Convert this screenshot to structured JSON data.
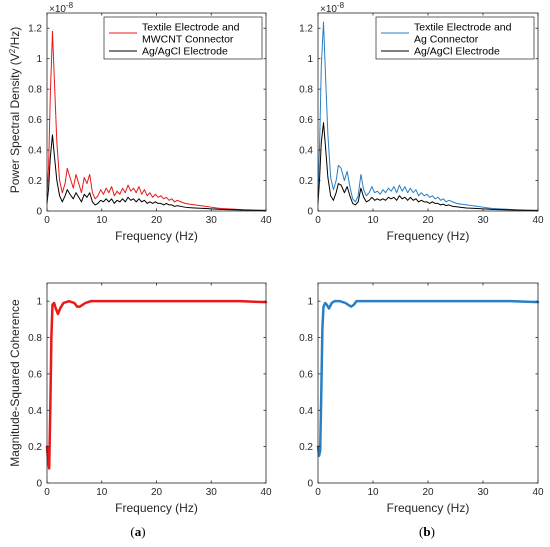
{
  "chart_data": [
    {
      "id": "a-psd",
      "type": "line",
      "panel": "(a)",
      "xlabel": "Frequency (Hz)",
      "ylabel_main": "Power Spectral Density (V",
      "ylabel_sup": "2",
      "ylabel_tail": "/Hz)",
      "exponent_base": "×10",
      "exponent": "-8",
      "xlim": [
        0,
        40
      ],
      "ylim": [
        0,
        1.3
      ],
      "xticks": [
        0,
        10,
        20,
        30,
        40
      ],
      "yticks": [
        0,
        0.2,
        0.4,
        0.6,
        0.8,
        1,
        1.2
      ],
      "legend_position": "top-right",
      "series": [
        {
          "name": "Textile Electrode and MWCNT Connector",
          "name_lines": [
            "Textile Electrode and",
            "MWCNT Connector"
          ],
          "color": "#e8191b",
          "width": 1.0,
          "x": [
            0,
            0.3,
            0.6,
            1.0,
            1.3,
            1.8,
            2.3,
            2.8,
            3.3,
            3.7,
            4.2,
            4.8,
            5.3,
            5.8,
            6.3,
            6.8,
            7.3,
            7.8,
            8.3,
            8.8,
            9.3,
            9.8,
            10.3,
            10.8,
            11.3,
            11.8,
            12.3,
            12.8,
            13.3,
            13.8,
            14.3,
            14.8,
            15.3,
            15.8,
            16.3,
            16.8,
            17.3,
            17.8,
            18.3,
            18.8,
            19.3,
            19.8,
            20.3,
            20.8,
            21.3,
            21.8,
            22.3,
            22.8,
            23.3,
            23.8,
            24.5,
            25.2,
            26,
            27,
            28,
            29,
            30,
            31,
            32,
            33,
            34,
            35,
            36,
            37,
            38,
            39,
            40
          ],
          "y": [
            0.1,
            0.3,
            0.75,
            1.18,
            0.9,
            0.45,
            0.2,
            0.12,
            0.18,
            0.28,
            0.22,
            0.15,
            0.24,
            0.18,
            0.12,
            0.22,
            0.18,
            0.24,
            0.12,
            0.08,
            0.1,
            0.14,
            0.11,
            0.15,
            0.12,
            0.16,
            0.1,
            0.13,
            0.11,
            0.15,
            0.12,
            0.17,
            0.13,
            0.15,
            0.12,
            0.16,
            0.11,
            0.14,
            0.1,
            0.12,
            0.09,
            0.11,
            0.09,
            0.1,
            0.08,
            0.09,
            0.07,
            0.08,
            0.06,
            0.07,
            0.06,
            0.05,
            0.045,
            0.04,
            0.035,
            0.03,
            0.025,
            0.02,
            0.016,
            0.014,
            0.012,
            0.01,
            0.008,
            0.007,
            0.006,
            0.005,
            0.004
          ]
        },
        {
          "name": "Ag/AgCl Electrode",
          "name_lines": [
            "Ag/AgCl Electrode"
          ],
          "color": "#000000",
          "width": 1.0,
          "x": [
            0,
            0.3,
            0.6,
            1.0,
            1.3,
            1.8,
            2.3,
            2.8,
            3.3,
            3.7,
            4.2,
            4.8,
            5.3,
            5.8,
            6.3,
            6.8,
            7.3,
            7.8,
            8.3,
            8.8,
            9.3,
            9.8,
            10.3,
            10.8,
            11.3,
            11.8,
            12.3,
            12.8,
            13.3,
            13.8,
            14.3,
            14.8,
            15.3,
            15.8,
            16.3,
            16.8,
            17.3,
            17.8,
            18.3,
            18.8,
            19.3,
            19.8,
            20.3,
            20.8,
            21.3,
            21.8,
            22.3,
            22.8,
            23.3,
            23.8,
            24.5,
            25.2,
            26,
            27,
            28,
            29,
            30,
            31,
            32,
            33,
            34,
            35,
            36,
            37,
            38,
            39,
            40
          ],
          "y": [
            0.05,
            0.15,
            0.35,
            0.5,
            0.38,
            0.2,
            0.1,
            0.06,
            0.1,
            0.14,
            0.11,
            0.08,
            0.12,
            0.09,
            0.06,
            0.11,
            0.09,
            0.12,
            0.06,
            0.04,
            0.05,
            0.07,
            0.06,
            0.08,
            0.06,
            0.08,
            0.05,
            0.07,
            0.06,
            0.08,
            0.06,
            0.09,
            0.07,
            0.08,
            0.06,
            0.08,
            0.06,
            0.07,
            0.05,
            0.06,
            0.05,
            0.06,
            0.05,
            0.05,
            0.04,
            0.05,
            0.04,
            0.04,
            0.03,
            0.035,
            0.03,
            0.025,
            0.022,
            0.02,
            0.018,
            0.016,
            0.014,
            0.012,
            0.01,
            0.009,
            0.008,
            0.007,
            0.006,
            0.005,
            0.004,
            0.004,
            0.003
          ]
        }
      ]
    },
    {
      "id": "b-psd",
      "type": "line",
      "panel": "(b)",
      "xlabel": "Frequency (Hz)",
      "exponent_base": "×10",
      "exponent": "-8",
      "xlim": [
        0,
        40
      ],
      "ylim": [
        0,
        1.3
      ],
      "xticks": [
        0,
        10,
        20,
        30,
        40
      ],
      "yticks": [
        0,
        0.2,
        0.4,
        0.6,
        0.8,
        1,
        1.2
      ],
      "legend_position": "top-right",
      "series": [
        {
          "name": "Textile Electrode and Ag Connector",
          "name_lines": [
            "Textile Electrode and",
            "Ag Connector"
          ],
          "color": "#2a7fc4",
          "width": 1.0,
          "x": [
            0,
            0.3,
            0.6,
            1.0,
            1.3,
            1.8,
            2.3,
            2.8,
            3.3,
            3.7,
            4.2,
            4.8,
            5.3,
            5.8,
            6.3,
            6.8,
            7.3,
            7.8,
            8.3,
            8.8,
            9.3,
            9.8,
            10.3,
            10.8,
            11.3,
            11.8,
            12.3,
            12.8,
            13.3,
            13.8,
            14.3,
            14.8,
            15.3,
            15.8,
            16.3,
            16.8,
            17.3,
            17.8,
            18.3,
            18.8,
            19.3,
            19.8,
            20.3,
            20.8,
            21.3,
            21.8,
            22.3,
            22.8,
            23.3,
            23.8,
            24.5,
            25.2,
            26,
            27,
            28,
            29,
            30,
            31,
            32,
            33,
            34,
            35,
            36,
            37,
            38,
            39,
            40
          ],
          "y": [
            0.1,
            0.45,
            0.95,
            1.24,
            0.95,
            0.5,
            0.22,
            0.14,
            0.2,
            0.3,
            0.28,
            0.2,
            0.26,
            0.16,
            0.08,
            0.06,
            0.1,
            0.24,
            0.14,
            0.1,
            0.12,
            0.16,
            0.12,
            0.13,
            0.11,
            0.14,
            0.12,
            0.15,
            0.13,
            0.16,
            0.12,
            0.17,
            0.13,
            0.16,
            0.12,
            0.15,
            0.12,
            0.14,
            0.1,
            0.12,
            0.1,
            0.11,
            0.09,
            0.1,
            0.08,
            0.09,
            0.07,
            0.08,
            0.06,
            0.07,
            0.06,
            0.05,
            0.045,
            0.04,
            0.035,
            0.03,
            0.025,
            0.02,
            0.016,
            0.014,
            0.012,
            0.01,
            0.008,
            0.007,
            0.006,
            0.005,
            0.004
          ]
        },
        {
          "name": "Ag/AgCl Electrode",
          "name_lines": [
            "Ag/AgCl Electrode"
          ],
          "color": "#000000",
          "width": 1.0,
          "x": [
            0,
            0.3,
            0.6,
            1.0,
            1.3,
            1.8,
            2.3,
            2.8,
            3.3,
            3.7,
            4.2,
            4.8,
            5.3,
            5.8,
            6.3,
            6.8,
            7.3,
            7.8,
            8.3,
            8.8,
            9.3,
            9.8,
            10.3,
            10.8,
            11.3,
            11.8,
            12.3,
            12.8,
            13.3,
            13.8,
            14.3,
            14.8,
            15.3,
            15.8,
            16.3,
            16.8,
            17.3,
            17.8,
            18.3,
            18.8,
            19.3,
            19.8,
            20.3,
            20.8,
            21.3,
            21.8,
            22.3,
            22.8,
            23.3,
            23.8,
            24.5,
            25.2,
            26,
            27,
            28,
            29,
            30,
            31,
            32,
            33,
            34,
            35,
            36,
            37,
            38,
            39,
            40
          ],
          "y": [
            0.05,
            0.22,
            0.45,
            0.58,
            0.45,
            0.22,
            0.1,
            0.07,
            0.12,
            0.18,
            0.17,
            0.12,
            0.16,
            0.1,
            0.05,
            0.04,
            0.06,
            0.15,
            0.09,
            0.06,
            0.07,
            0.09,
            0.07,
            0.08,
            0.07,
            0.08,
            0.07,
            0.09,
            0.08,
            0.09,
            0.07,
            0.1,
            0.08,
            0.09,
            0.07,
            0.09,
            0.07,
            0.08,
            0.06,
            0.07,
            0.06,
            0.06,
            0.05,
            0.06,
            0.05,
            0.05,
            0.04,
            0.045,
            0.035,
            0.04,
            0.03,
            0.028,
            0.024,
            0.02,
            0.018,
            0.016,
            0.014,
            0.012,
            0.01,
            0.009,
            0.008,
            0.007,
            0.006,
            0.005,
            0.004,
            0.004,
            0.003
          ]
        }
      ]
    },
    {
      "id": "a-coh",
      "type": "line",
      "xlabel": "Frequency (Hz)",
      "ylabel": "Magnitude-Squared Coherence",
      "xlim": [
        0,
        40
      ],
      "ylim": [
        0,
        1.1
      ],
      "xticks": [
        0,
        10,
        20,
        30,
        40
      ],
      "yticks": [
        0,
        0.2,
        0.4,
        0.6,
        0.8,
        1
      ],
      "series": [
        {
          "color": "#e8191b",
          "width": 2.5,
          "x": [
            0,
            0.2,
            0.4,
            0.6,
            0.8,
            1.0,
            1.3,
            1.6,
            2.0,
            2.4,
            3.0,
            4.0,
            5.0,
            5.5,
            6.0,
            6.5,
            7.0,
            8.0,
            10,
            15,
            20,
            25,
            30,
            35,
            40
          ],
          "y": [
            0.2,
            0.12,
            0.08,
            0.4,
            0.8,
            0.98,
            0.99,
            0.96,
            0.93,
            0.96,
            0.99,
            1.0,
            0.99,
            0.97,
            0.97,
            0.98,
            0.99,
            1.0,
            1.0,
            1.0,
            1.0,
            1.0,
            1.0,
            1.0,
            0.995
          ]
        }
      ]
    },
    {
      "id": "b-coh",
      "type": "line",
      "xlabel": "Frequency (Hz)",
      "xlim": [
        0,
        40
      ],
      "ylim": [
        0,
        1.1
      ],
      "xticks": [
        0,
        10,
        20,
        30,
        40
      ],
      "yticks": [
        0,
        0.2,
        0.4,
        0.6,
        0.8,
        1
      ],
      "series": [
        {
          "color": "#2a7fc4",
          "width": 2.5,
          "x": [
            0,
            0.2,
            0.4,
            0.6,
            0.8,
            1.0,
            1.3,
            1.6,
            2.0,
            2.5,
            3.0,
            4.0,
            5.0,
            6.0,
            6.5,
            7.0,
            8.0,
            10,
            15,
            20,
            25,
            30,
            35,
            40
          ],
          "y": [
            0.2,
            0.15,
            0.18,
            0.5,
            0.85,
            0.97,
            0.99,
            0.98,
            0.96,
            0.99,
            1.0,
            1.0,
            0.99,
            0.97,
            0.98,
            1.0,
            1.0,
            1.0,
            1.0,
            1.0,
            1.0,
            1.0,
            1.0,
            0.995
          ]
        }
      ]
    }
  ]
}
